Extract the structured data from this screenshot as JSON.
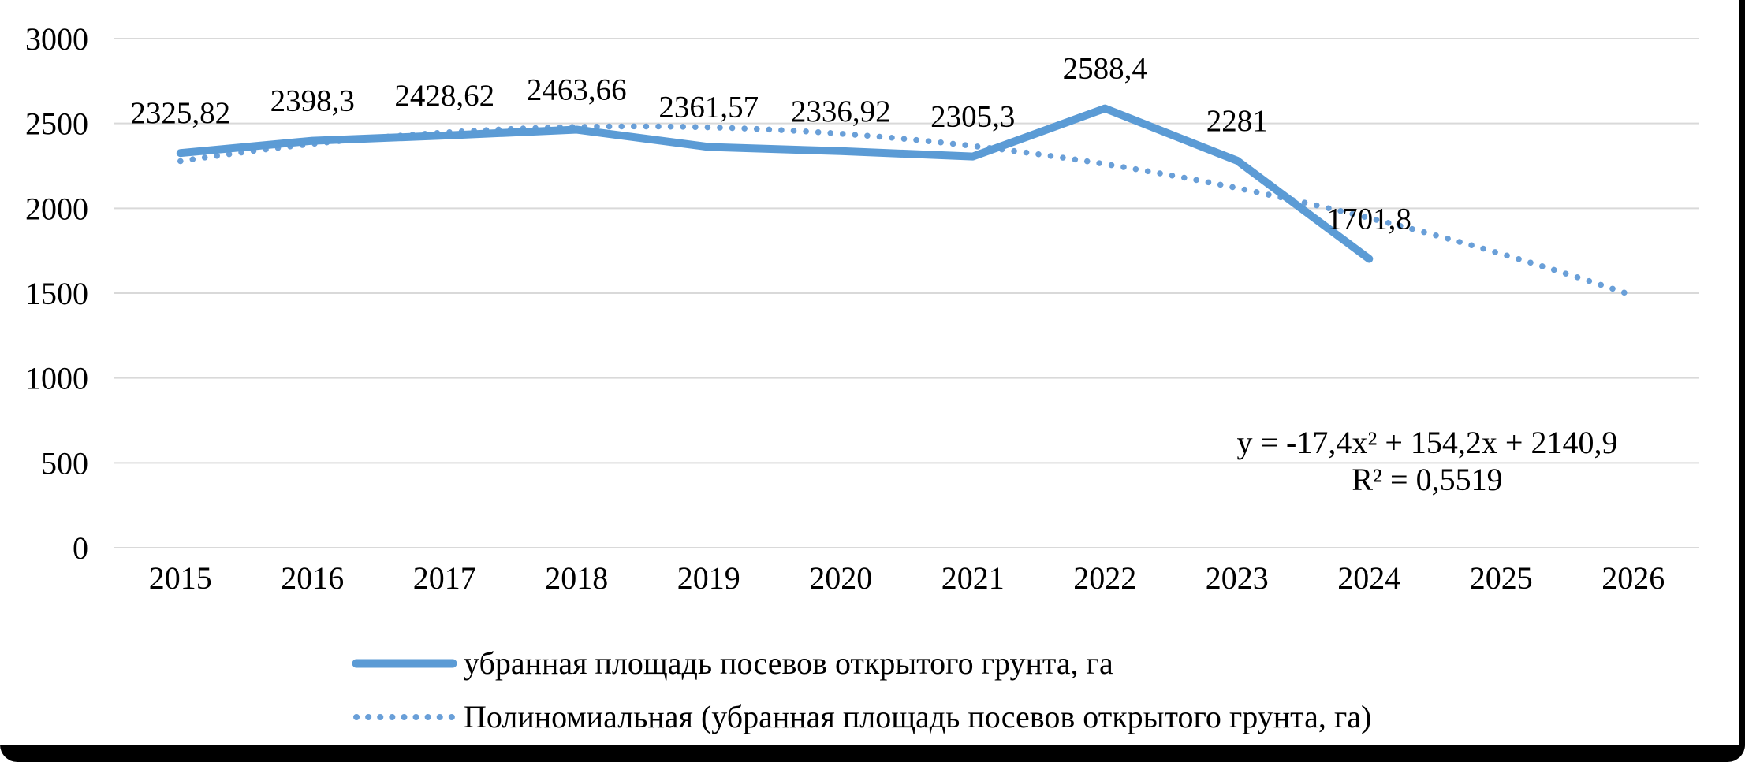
{
  "chart_data": {
    "type": "line",
    "categories": [
      "2015",
      "2016",
      "2017",
      "2018",
      "2019",
      "2020",
      "2021",
      "2022",
      "2023",
      "2024",
      "2025",
      "2026"
    ],
    "series": [
      {
        "name": "убранная площадь посевов открытого грунта, га",
        "style": "solid",
        "color": "#5B9BD5",
        "values": [
          2325.82,
          2398.3,
          2428.62,
          2463.66,
          2361.57,
          2336.92,
          2305.3,
          2588.4,
          2281,
          1701.8
        ],
        "labels": [
          "2325,82",
          "2398,3",
          "2428,62",
          "2463,66",
          "2361,57",
          "2336,92",
          "2305,3",
          "2588,4",
          "2281",
          "1701,8"
        ]
      },
      {
        "name": "Полиномиальная (убранная площадь посевов открытого грунта, га)",
        "style": "dotted",
        "color": "#699FD8",
        "trendline": "polynomial",
        "coefficients": [
          -17.4,
          154.2,
          2140.9
        ],
        "values": [
          2277.7,
          2379.7,
          2446.9,
          2479.3,
          2476.9,
          2439.7,
          2367.7,
          2260.9,
          2119.3,
          1942.9,
          1731.7,
          1485.7
        ]
      }
    ],
    "annotations": {
      "equation": "y = -17,4x² + 154,2x + 2140,9",
      "r_squared": "R² = 0,5519"
    },
    "y_axis": {
      "min": 0,
      "max": 3000,
      "step": 500,
      "ticks": [
        "0",
        "500",
        "1000",
        "1500",
        "2000",
        "2500",
        "3000"
      ]
    },
    "grid": "horizontal",
    "gridline_color": "#D9D9D9",
    "text_color": "#000000",
    "legend_position": "bottom"
  }
}
